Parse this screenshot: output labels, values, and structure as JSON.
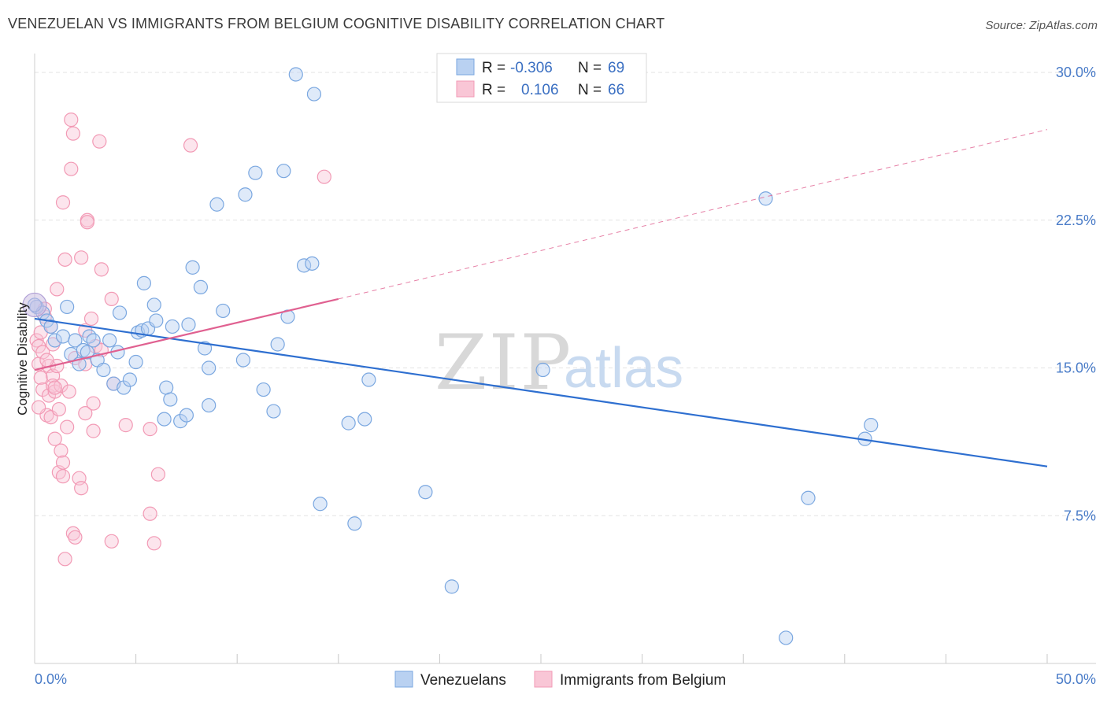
{
  "header": {
    "title": "VENEZUELAN VS IMMIGRANTS FROM BELGIUM COGNITIVE DISABILITY CORRELATION CHART",
    "source": "Source: ZipAtlas.com"
  },
  "watermark": {
    "part1": "ZIP",
    "part2": "atlas"
  },
  "legend_top": [
    {
      "r_label": "R =",
      "r_value": "-0.306",
      "n_label": "N =",
      "n_value": "69"
    },
    {
      "r_label": "R =",
      "r_value": "0.106",
      "n_label": "N =",
      "n_value": "66"
    }
  ],
  "legend_bottom": [
    "Venezuelans",
    "Immigrants from Belgium"
  ],
  "chart_data": {
    "type": "scatter",
    "title": "VENEZUELAN VS IMMIGRANTS FROM BELGIUM COGNITIVE DISABILITY CORRELATION CHART",
    "xlabel": "",
    "ylabel": "Cognitive Disability",
    "xlim": [
      0,
      50
    ],
    "ylim": [
      0,
      31
    ],
    "x_tick_labels": [
      "0.0%",
      "50.0%"
    ],
    "y_ticks": [
      7.5,
      15.0,
      22.5,
      30.0
    ],
    "y_tick_labels": [
      "7.5%",
      "15.0%",
      "22.5%",
      "30.0%"
    ],
    "grid": true,
    "colors": {
      "blue": "#7aa7e0",
      "blue_line": "#2e6fd0",
      "pink": "#f29ab5",
      "pink_line": "#e06090"
    },
    "series": [
      {
        "name": "Venezuelans",
        "color": "#7aa7e0",
        "r": -0.306,
        "n": 69,
        "trend": {
          "x": [
            0,
            50
          ],
          "y": [
            17.5,
            10.0
          ],
          "dashed_extension": false
        },
        "points": [
          [
            0.1,
            18.1
          ],
          [
            0.4,
            17.8
          ],
          [
            0.6,
            17.4
          ],
          [
            0.8,
            17.1
          ],
          [
            1.0,
            16.4
          ],
          [
            1.4,
            16.6
          ],
          [
            1.6,
            18.1
          ],
          [
            1.8,
            15.7
          ],
          [
            2.0,
            16.4
          ],
          [
            2.2,
            15.2
          ],
          [
            2.4,
            15.9
          ],
          [
            2.6,
            15.8
          ],
          [
            2.7,
            16.6
          ],
          [
            2.9,
            16.4
          ],
          [
            3.1,
            15.4
          ],
          [
            3.4,
            14.9
          ],
          [
            3.7,
            16.4
          ],
          [
            3.9,
            14.2
          ],
          [
            4.1,
            15.8
          ],
          [
            4.2,
            17.8
          ],
          [
            4.4,
            14.0
          ],
          [
            4.7,
            14.4
          ],
          [
            5.0,
            15.3
          ],
          [
            5.1,
            16.8
          ],
          [
            5.4,
            19.3
          ],
          [
            5.3,
            16.9
          ],
          [
            5.6,
            17.0
          ],
          [
            5.9,
            18.2
          ],
          [
            6.0,
            17.4
          ],
          [
            6.4,
            12.4
          ],
          [
            6.5,
            14.0
          ],
          [
            6.7,
            13.4
          ],
          [
            6.8,
            17.1
          ],
          [
            7.2,
            12.3
          ],
          [
            7.5,
            12.6
          ],
          [
            7.6,
            17.2
          ],
          [
            7.8,
            20.1
          ],
          [
            8.2,
            19.1
          ],
          [
            8.4,
            16.0
          ],
          [
            8.6,
            15.0
          ],
          [
            8.6,
            13.1
          ],
          [
            9.0,
            23.3
          ],
          [
            9.3,
            17.9
          ],
          [
            10.4,
            23.8
          ],
          [
            10.3,
            15.4
          ],
          [
            10.9,
            24.9
          ],
          [
            11.3,
            13.9
          ],
          [
            11.8,
            12.8
          ],
          [
            12.0,
            16.2
          ],
          [
            12.3,
            25.0
          ],
          [
            12.5,
            17.6
          ],
          [
            12.9,
            29.9
          ],
          [
            13.3,
            20.2
          ],
          [
            13.7,
            20.3
          ],
          [
            13.8,
            28.9
          ],
          [
            14.1,
            8.1
          ],
          [
            15.5,
            12.2
          ],
          [
            15.8,
            7.1
          ],
          [
            16.3,
            12.4
          ],
          [
            16.5,
            14.4
          ],
          [
            19.3,
            8.7
          ],
          [
            20.6,
            3.9
          ],
          [
            25.1,
            14.9
          ],
          [
            36.1,
            23.6
          ],
          [
            37.1,
            1.3
          ],
          [
            38.2,
            8.4
          ],
          [
            41.0,
            11.4
          ],
          [
            41.3,
            12.1
          ],
          [
            0.0,
            18.2
          ]
        ]
      },
      {
        "name": "Immigrants from Belgium",
        "color": "#f29ab5",
        "r": 0.106,
        "n": 66,
        "trend": {
          "x": [
            0,
            15
          ],
          "y": [
            14.9,
            18.5
          ],
          "dash_extension_x": [
            15,
            50
          ],
          "dash_extension_y": [
            18.5,
            27.1
          ]
        },
        "points": [
          [
            0.1,
            16.4
          ],
          [
            0.2,
            15.2
          ],
          [
            0.2,
            16.1
          ],
          [
            0.3,
            14.5
          ],
          [
            0.4,
            15.8
          ],
          [
            0.4,
            13.9
          ],
          [
            0.5,
            17.6
          ],
          [
            0.5,
            18.0
          ],
          [
            0.6,
            12.6
          ],
          [
            0.7,
            15.1
          ],
          [
            0.7,
            13.6
          ],
          [
            0.8,
            17.1
          ],
          [
            0.8,
            12.5
          ],
          [
            0.9,
            16.2
          ],
          [
            0.9,
            14.6
          ],
          [
            0.9,
            14.1
          ],
          [
            1.0,
            11.4
          ],
          [
            1.0,
            13.8
          ],
          [
            1.1,
            15.1
          ],
          [
            1.1,
            19.0
          ],
          [
            1.2,
            9.7
          ],
          [
            1.2,
            12.9
          ],
          [
            1.3,
            10.8
          ],
          [
            1.3,
            14.1
          ],
          [
            1.4,
            10.2
          ],
          [
            1.4,
            9.5
          ],
          [
            1.4,
            23.4
          ],
          [
            1.5,
            20.5
          ],
          [
            1.5,
            5.3
          ],
          [
            1.6,
            12.0
          ],
          [
            1.7,
            13.8
          ],
          [
            1.8,
            25.1
          ],
          [
            1.8,
            27.6
          ],
          [
            1.9,
            26.9
          ],
          [
            1.9,
            6.6
          ],
          [
            2.0,
            6.4
          ],
          [
            2.0,
            15.5
          ],
          [
            2.2,
            9.4
          ],
          [
            2.3,
            20.6
          ],
          [
            2.3,
            8.9
          ],
          [
            2.5,
            15.2
          ],
          [
            2.5,
            16.9
          ],
          [
            2.5,
            12.7
          ],
          [
            2.6,
            22.5
          ],
          [
            2.6,
            22.4
          ],
          [
            2.8,
            17.5
          ],
          [
            2.9,
            13.2
          ],
          [
            2.9,
            11.8
          ],
          [
            3.0,
            16.1
          ],
          [
            3.2,
            26.5
          ],
          [
            3.3,
            15.9
          ],
          [
            3.3,
            20.0
          ],
          [
            3.8,
            6.2
          ],
          [
            3.8,
            18.5
          ],
          [
            3.9,
            14.2
          ],
          [
            4.5,
            12.1
          ],
          [
            5.7,
            7.6
          ],
          [
            5.7,
            11.9
          ],
          [
            5.9,
            6.1
          ],
          [
            6.1,
            9.6
          ],
          [
            7.7,
            26.3
          ],
          [
            14.3,
            24.7
          ],
          [
            0.2,
            13.0
          ],
          [
            0.3,
            16.8
          ],
          [
            0.6,
            15.4
          ],
          [
            1.0,
            14.0
          ]
        ]
      }
    ]
  }
}
